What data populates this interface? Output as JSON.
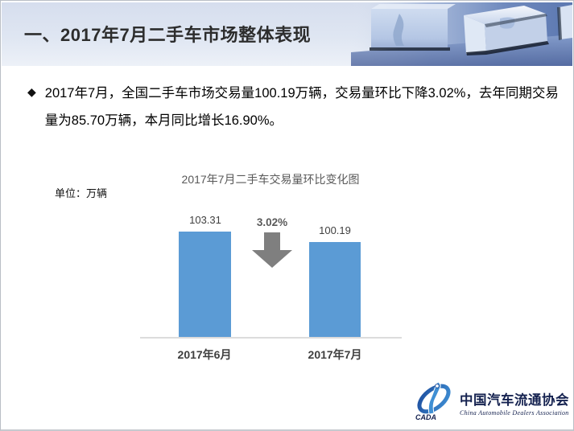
{
  "header": {
    "title": "一、2017年7月二手车市场整体表现"
  },
  "bullet": {
    "marker": "◆",
    "lines": [
      "2017年7月，全国二手车市场交易量100.19万辆，交易量环比下降3.02%，去年同期交易",
      "量为85.70万辆，本月同比增长16.90%。"
    ]
  },
  "chart_data": {
    "type": "bar",
    "title": "2017年7月二手车交易量环比变化图",
    "unit_label": "单位：万辆",
    "categories": [
      "2017年6月",
      "2017年7月"
    ],
    "values": [
      103.31,
      100.19
    ],
    "value_labels": [
      "103.31",
      "100.19"
    ],
    "annotation": {
      "text": "3.02%",
      "meaning": "month-over-month decrease",
      "shape": "down-arrow"
    },
    "bar_color": "#5b9bd5",
    "arrow_color": "#7f7f7f",
    "axis": {
      "y_axis_visible": false,
      "gridlines": false,
      "baseline_visible": true
    },
    "legend": false,
    "data_labels": true
  },
  "logo": {
    "emblem_text": "CADA",
    "name_cn": "中国汽车流通协会",
    "name_en": "China Automobile Dealers Association"
  },
  "colors": {
    "bar": "#5b9bd5",
    "arrow": "#7f7f7f",
    "header_band": "#dbe2f0",
    "logo_navy": "#14214f"
  }
}
